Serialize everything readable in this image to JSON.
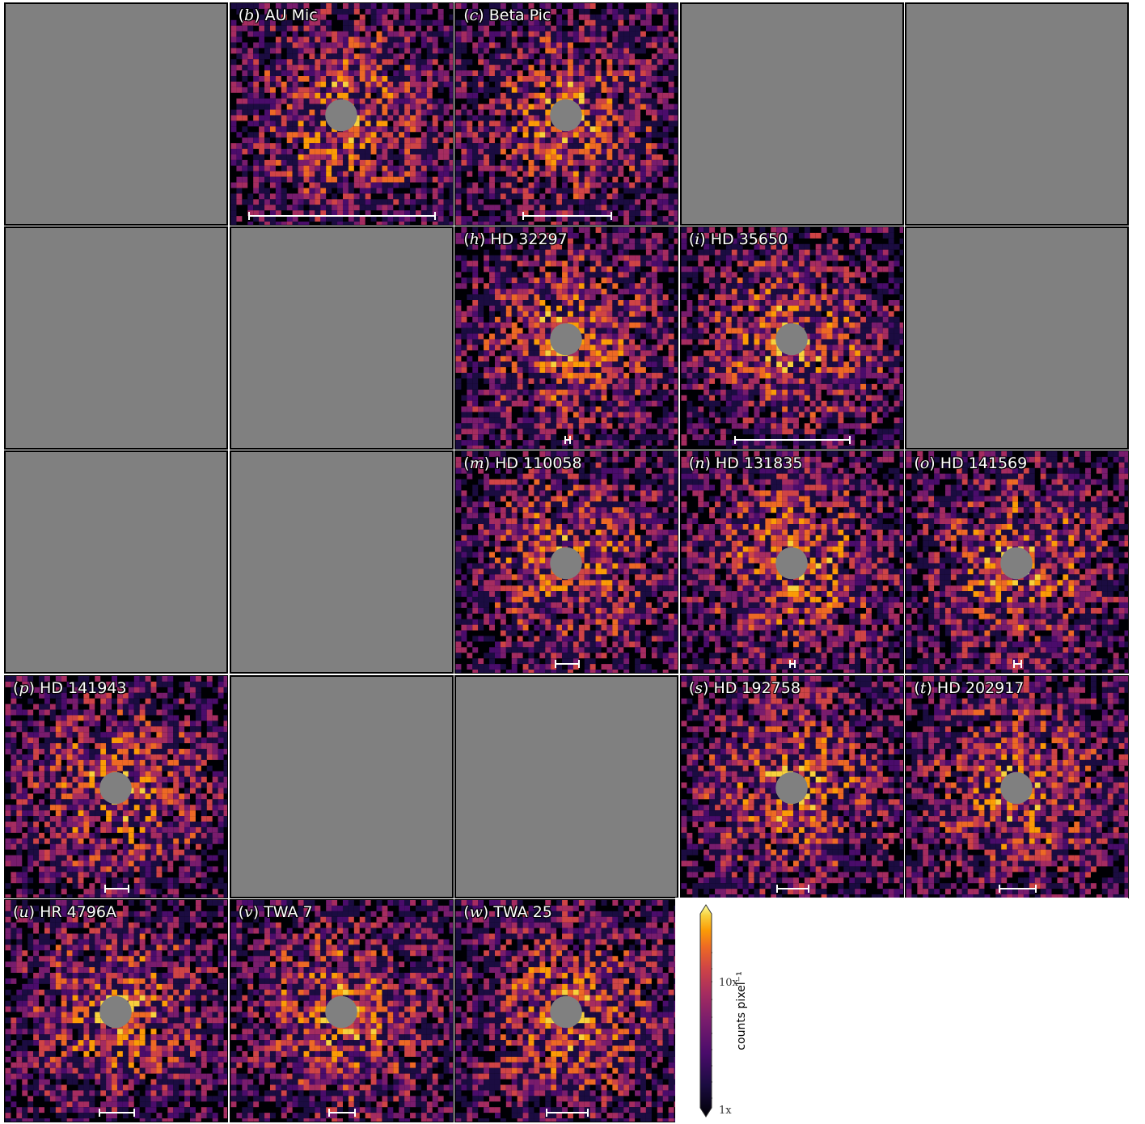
{
  "panels": [
    {
      "id": "a",
      "empty": true
    },
    {
      "id": "b",
      "letter": "b",
      "name": "AU Mic",
      "scalebar": 0.84
    },
    {
      "id": "c",
      "letter": "c",
      "name": "Beta Pic",
      "scalebar": 0.4
    },
    {
      "id": "d",
      "empty": true
    },
    {
      "id": "e",
      "empty": true
    },
    {
      "id": "f",
      "empty": true
    },
    {
      "id": "g",
      "empty": true
    },
    {
      "id": "h",
      "letter": "h",
      "name": "HD 32297",
      "scalebar": 0.03
    },
    {
      "id": "i",
      "letter": "i",
      "name": "HD 35650",
      "scalebar": 0.52
    },
    {
      "id": "j",
      "empty": true
    },
    {
      "id": "k",
      "empty": true
    },
    {
      "id": "l",
      "empty": true
    },
    {
      "id": "m",
      "letter": "m",
      "name": "HD 110058",
      "scalebar": 0.11
    },
    {
      "id": "n",
      "letter": "n",
      "name": "HD 131835",
      "scalebar": 0.03
    },
    {
      "id": "o",
      "letter": "o",
      "name": "HD 141569",
      "scalebar": 0.04
    },
    {
      "id": "p",
      "letter": "p",
      "name": "HD 141943",
      "scalebar": 0.11
    },
    {
      "id": "q",
      "empty": true
    },
    {
      "id": "r",
      "empty": true
    },
    {
      "id": "s",
      "letter": "s",
      "name": "HD 192758",
      "scalebar": 0.15
    },
    {
      "id": "t",
      "letter": "t",
      "name": "HD 202917",
      "scalebar": 0.17
    },
    {
      "id": "u",
      "letter": "u",
      "name": "HR 4796A",
      "scalebar": 0.16
    },
    {
      "id": "v",
      "letter": "v",
      "name": "TWA 7",
      "scalebar": 0.12
    },
    {
      "id": "w",
      "letter": "w",
      "name": "TWA 25",
      "scalebar": 0.19
    }
  ],
  "colorbar": {
    "label": "counts pixel⁻¹",
    "tick_top": "10x",
    "tick_bottom": "1x",
    "colormap": "inferno"
  },
  "colors": {
    "mask": "#808080",
    "background": "#000004"
  }
}
